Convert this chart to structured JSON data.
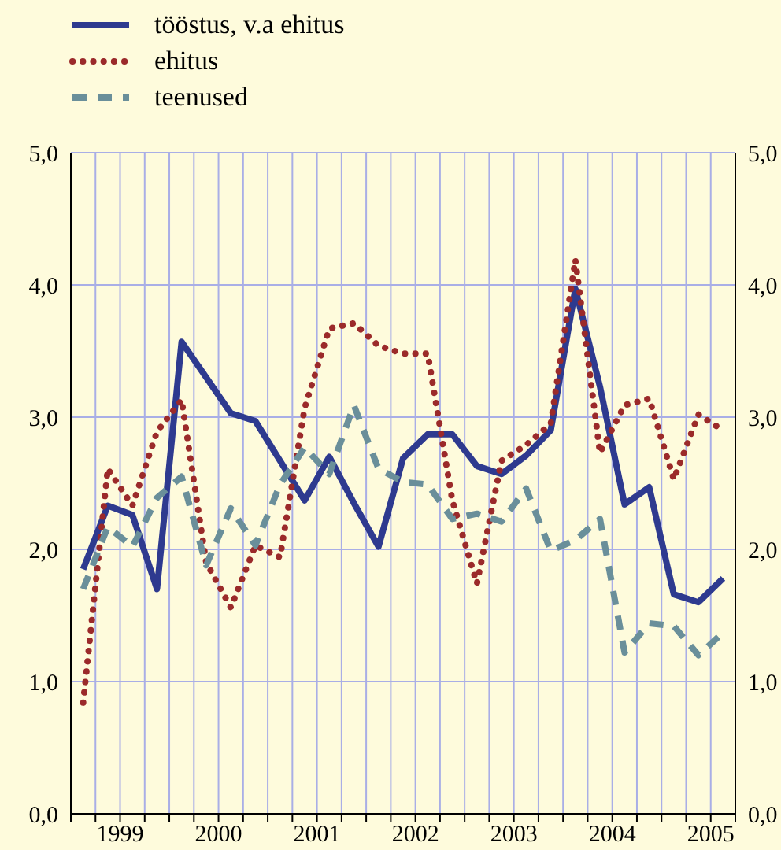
{
  "chart_data": {
    "type": "line",
    "x": [
      1999.125,
      1999.375,
      1999.625,
      1999.875,
      2000.125,
      2000.375,
      2000.625,
      2000.875,
      2001.125,
      2001.375,
      2001.625,
      2001.875,
      2002.125,
      2002.375,
      2002.625,
      2002.875,
      2003.125,
      2003.375,
      2003.625,
      2003.875,
      2004.125,
      2004.375,
      2004.625,
      2004.875,
      2005.125,
      2005.375,
      2005.625
    ],
    "series": [
      {
        "name": "tööstus, v.a ehitus",
        "color": "#2e3a8f",
        "line_style": "solid",
        "values": [
          1.85,
          2.33,
          2.26,
          1.7,
          3.57,
          3.3,
          3.03,
          2.97,
          2.67,
          2.37,
          2.7,
          2.35,
          2.02,
          2.69,
          2.87,
          2.87,
          2.63,
          2.57,
          2.71,
          2.9,
          3.97,
          3.23,
          2.34,
          2.47,
          1.66,
          1.6,
          1.78
        ]
      },
      {
        "name": "ehitus",
        "color": "#9b2a2a",
        "line_style": "dotted",
        "values": [
          0.84,
          2.61,
          2.33,
          2.89,
          3.13,
          1.9,
          1.56,
          2.03,
          1.94,
          3.07,
          3.67,
          3.71,
          3.54,
          3.48,
          3.48,
          2.37,
          1.74,
          2.67,
          2.79,
          2.95,
          4.19,
          2.73,
          3.09,
          3.14,
          2.53,
          3.02,
          2.9
        ]
      },
      {
        "name": "teenused",
        "color": "#6a8f9a",
        "line_style": "dashed",
        "values": [
          1.7,
          2.17,
          2.02,
          2.39,
          2.55,
          1.88,
          2.31,
          2.03,
          2.49,
          2.77,
          2.57,
          3.09,
          2.61,
          2.51,
          2.49,
          2.23,
          2.27,
          2.21,
          2.46,
          1.99,
          2.07,
          2.23,
          1.22,
          1.44,
          1.42,
          1.2,
          1.37
        ]
      }
    ],
    "xlim": [
      1999,
      2005.75
    ],
    "xticks": [
      {
        "value": 1999,
        "label": null
      },
      {
        "value": 1999.25,
        "label": null
      },
      {
        "value": 1999.5,
        "label": "1999"
      },
      {
        "value": 1999.75,
        "label": null
      },
      {
        "value": 2000,
        "label": null
      },
      {
        "value": 2000.25,
        "label": null
      },
      {
        "value": 2000.5,
        "label": "2000"
      },
      {
        "value": 2000.75,
        "label": null
      },
      {
        "value": 2001,
        "label": null
      },
      {
        "value": 2001.25,
        "label": null
      },
      {
        "value": 2001.5,
        "label": "2001"
      },
      {
        "value": 2001.75,
        "label": null
      },
      {
        "value": 2002,
        "label": null
      },
      {
        "value": 2002.25,
        "label": null
      },
      {
        "value": 2002.5,
        "label": "2002"
      },
      {
        "value": 2002.75,
        "label": null
      },
      {
        "value": 2003,
        "label": null
      },
      {
        "value": 2003.25,
        "label": null
      },
      {
        "value": 2003.5,
        "label": "2003"
      },
      {
        "value": 2003.75,
        "label": null
      },
      {
        "value": 2004,
        "label": null
      },
      {
        "value": 2004.25,
        "label": null
      },
      {
        "value": 2004.5,
        "label": "2004"
      },
      {
        "value": 2004.75,
        "label": null
      },
      {
        "value": 2005,
        "label": null
      },
      {
        "value": 2005.25,
        "label": null
      },
      {
        "value": 2005.5,
        "label": "2005"
      },
      {
        "value": 2005.75,
        "label": null
      }
    ],
    "ylim": [
      0,
      5
    ],
    "yticks": [
      {
        "value": 0,
        "label": "0,0"
      },
      {
        "value": 1,
        "label": "1,0"
      },
      {
        "value": 2,
        "label": "2,0"
      },
      {
        "value": 3,
        "label": "3,0"
      },
      {
        "value": 4,
        "label": "4,0"
      },
      {
        "value": 5,
        "label": "5,0"
      }
    ],
    "y2lim": [
      0,
      5
    ],
    "y2ticks": [
      {
        "value": 0,
        "label": "0,0"
      },
      {
        "value": 1,
        "label": "1,0"
      },
      {
        "value": 2,
        "label": "2,0"
      },
      {
        "value": 3,
        "label": "3,0"
      },
      {
        "value": 4,
        "label": "4,0"
      },
      {
        "value": 5,
        "label": "5,0"
      }
    ],
    "grid": true,
    "legend": "top left"
  }
}
